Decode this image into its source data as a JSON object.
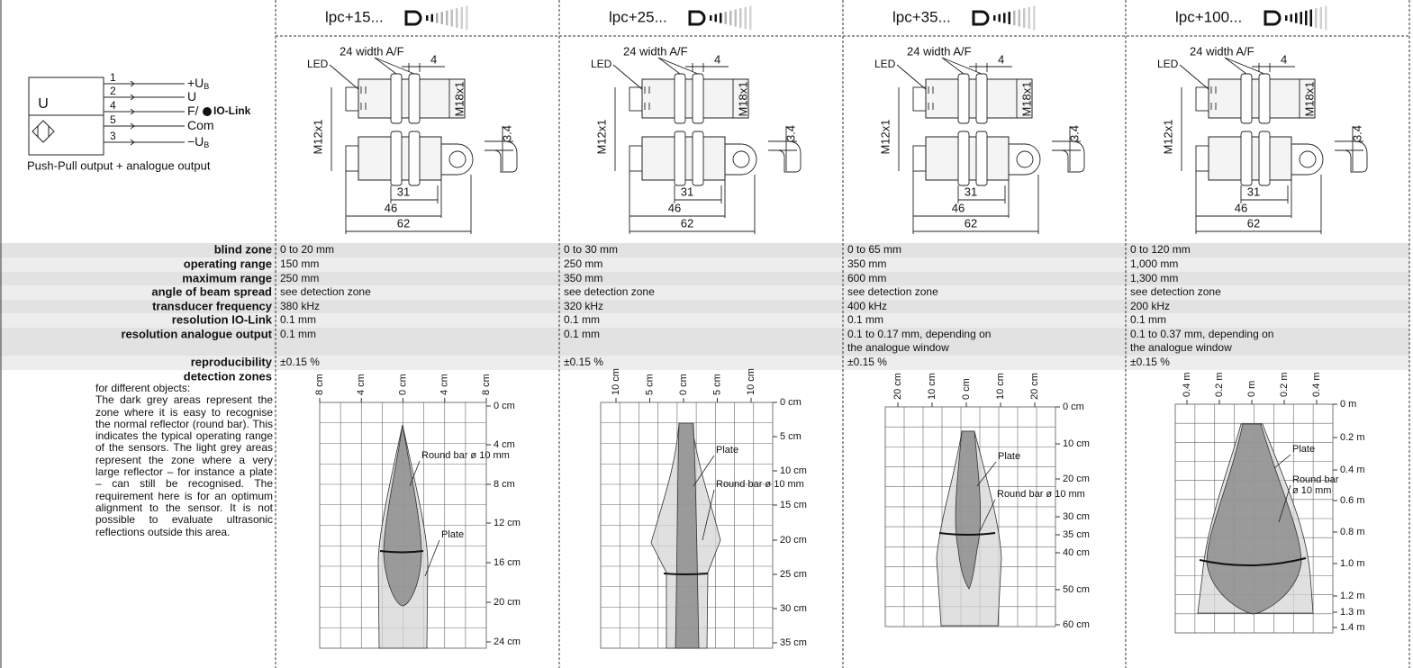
{
  "wiring": {
    "box_label": "U",
    "pins": [
      "1",
      "2",
      "4",
      "5",
      "3"
    ],
    "signals": [
      {
        "text": "+U",
        "sub": "B"
      },
      {
        "text": "U"
      },
      {
        "text": "F/",
        "logo": "IO-Link"
      },
      {
        "text": "Com"
      },
      {
        "text": "−U",
        "sub": "B"
      }
    ],
    "caption": "Push-Pull output + analogue output"
  },
  "drawing": {
    "led": "LED",
    "width": "24 width A/F",
    "nut": "4",
    "thread_large": "M18x1",
    "thread_small": "M12x1",
    "bracket": "3.4",
    "dims": [
      "31",
      "46",
      "62"
    ]
  },
  "spec_labels": [
    "blind zone",
    "operating range",
    "maximum range",
    "angle of beam spread",
    "transducer frequency",
    "resolution IO-Link",
    "resolution analogue output",
    "reproducibility",
    "detection zones"
  ],
  "detection_text": {
    "intro": "for different objects:",
    "body": "The dark grey areas represent the zone where it is easy to recognise the normal reflector (round bar). This indicates the typical operating range of the sensors. The light grey areas represent the zone where a very large reflector – for instance a plate – can still be recognised. The requirement here is for an optimum alignment to the sensor. It is not possible to evaluate ultrasonic reflections outside this area."
  },
  "products": [
    {
      "name": "lpc+15...",
      "specs": [
        "0 to 20 mm",
        "150 mm",
        "250 mm",
        "see detection zone",
        "380 kHz",
        "0.1 mm",
        "0.1 mm",
        "±0.15 %"
      ],
      "zone": {
        "x_labels": [
          "8 cm",
          "4 cm",
          "0 cm",
          "4 cm",
          "8 cm"
        ],
        "y_labels": [
          "0 cm",
          "4 cm",
          "8 cm",
          "12 cm",
          "16 cm",
          "20 cm",
          "24 cm"
        ],
        "round_bar": [
          "Round bar ø 10 mm"
        ],
        "plate": "Plate"
      }
    },
    {
      "name": "lpc+25...",
      "specs": [
        "0 to 30 mm",
        "250 mm",
        "350 mm",
        "see detection zone",
        "320 kHz",
        "0.1 mm",
        "0.1 mm",
        "±0.15 %"
      ],
      "zone": {
        "x_labels": [
          "10 cm",
          "5 cm",
          "0 cm",
          "5 cm",
          "10 cm"
        ],
        "y_labels": [
          "0 cm",
          "5 cm",
          "10 cm",
          "15 cm",
          "20 cm",
          "25 cm",
          "30 cm",
          "35 cm"
        ],
        "round_bar": [
          "Round bar ø 10 mm"
        ],
        "plate": "Plate"
      }
    },
    {
      "name": "lpc+35...",
      "specs": [
        "0 to 65 mm",
        "350 mm",
        "600 mm",
        "see detection zone",
        "400 kHz",
        "0.1 mm",
        [
          "0.1 to 0.17 mm, depending on",
          "the analogue window"
        ],
        "±0.15 %"
      ],
      "zone": {
        "x_labels": [
          "20 cm",
          "10 cm",
          "0 cm",
          "10 cm",
          "20 cm"
        ],
        "y_labels": [
          "0 cm",
          "10 cm",
          "20 cm",
          "30 cm",
          "35 cm",
          "40 cm",
          "50 cm",
          "60 cm"
        ],
        "round_bar": [
          "Round bar ø 10 mm"
        ],
        "plate": "Plate"
      }
    },
    {
      "name": "lpc+100...",
      "specs": [
        "0 to 120 mm",
        "1,000 mm",
        "1,300 mm",
        "see detection zone",
        "200 kHz",
        "0.1 mm",
        [
          "0.1 to 0.37 mm, depending on",
          "the analogue window"
        ],
        "±0.15 %"
      ],
      "zone": {
        "x_labels": [
          "0.4 m",
          "0.2 m",
          "0 m",
          "0.2 m",
          "0.4 m"
        ],
        "y_labels": [
          "0 m",
          "0.2 m",
          "0.4 m",
          "0.6 m",
          "0.8 m",
          "1.0 m",
          "1.2 m",
          "1.3 m",
          "1.4 m"
        ],
        "round_bar": [
          "Round bar",
          "ø 10 mm"
        ],
        "plate": "Plate"
      }
    }
  ]
}
